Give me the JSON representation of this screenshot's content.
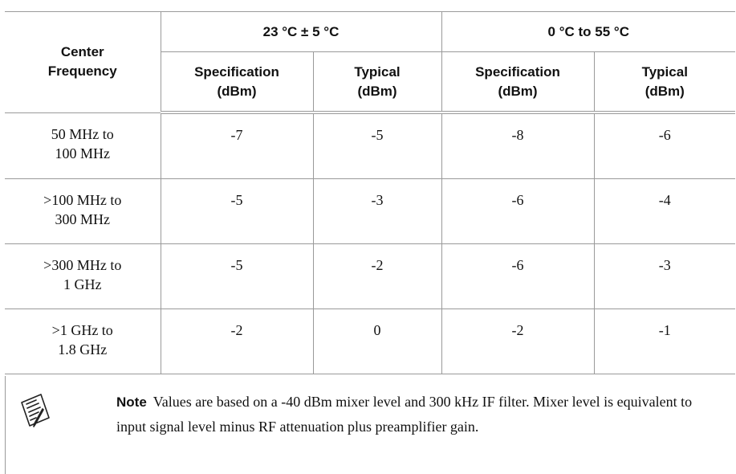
{
  "table": {
    "group_headers": [
      "23 °C ± 5 °C",
      "0 °C to 55 °C"
    ],
    "first_column_header": [
      "Center",
      "Frequency"
    ],
    "sub_headers": [
      [
        "Specification",
        "(dBm)"
      ],
      [
        "Typical",
        "(dBm)"
      ],
      [
        "Specification",
        "(dBm)"
      ],
      [
        "Typical",
        "(dBm)"
      ]
    ],
    "rows": [
      {
        "frequency": [
          "50 MHz to",
          "100 MHz"
        ],
        "values": [
          "-7",
          "-5",
          "-8",
          "-6"
        ]
      },
      {
        "frequency": [
          ">100 MHz to",
          "300 MHz"
        ],
        "values": [
          "-5",
          "-3",
          "-6",
          "-4"
        ]
      },
      {
        "frequency": [
          ">300 MHz to",
          "1 GHz"
        ],
        "values": [
          "-5",
          "-2",
          "-6",
          "-3"
        ]
      },
      {
        "frequency": [
          ">1 GHz to",
          "1.8 GHz"
        ],
        "values": [
          "-2",
          "0",
          "-2",
          "-1"
        ]
      }
    ]
  },
  "note": {
    "icon": "note-pad-icon",
    "label": "Note",
    "text": "Values are based on a -40 dBm mixer level and 300 kHz IF filter. Mixer level is equivalent to input signal level minus RF attenuation plus preamplifier gain."
  }
}
